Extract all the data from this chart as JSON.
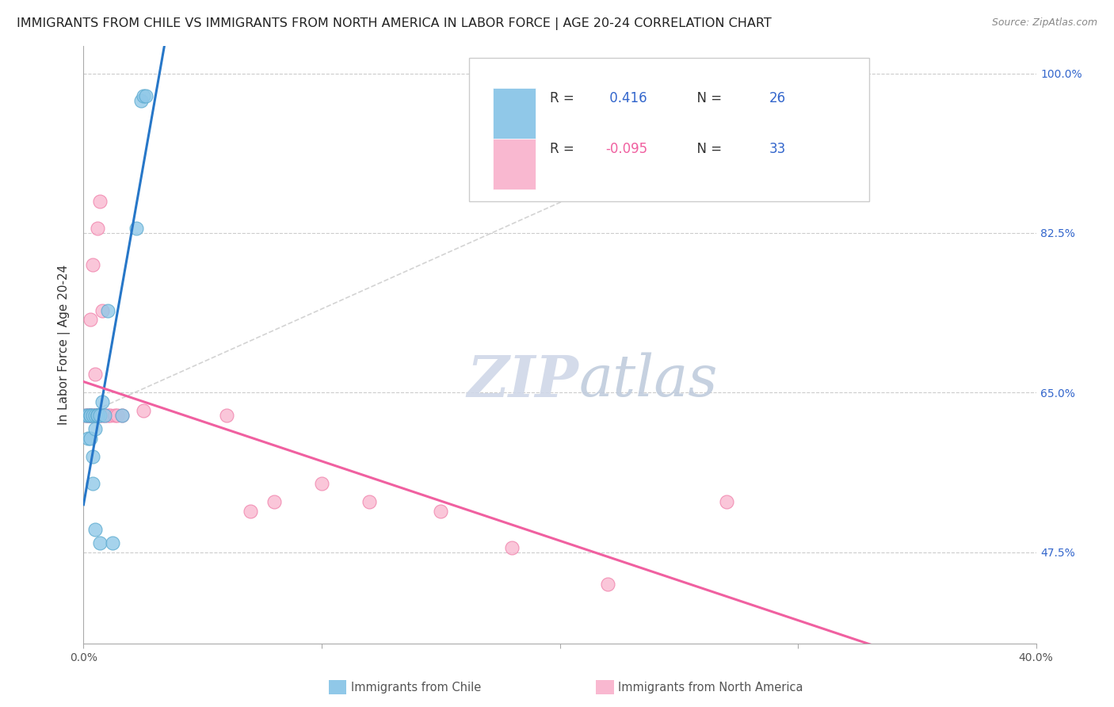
{
  "title": "IMMIGRANTS FROM CHILE VS IMMIGRANTS FROM NORTH AMERICA IN LABOR FORCE | AGE 20-24 CORRELATION CHART",
  "source": "Source: ZipAtlas.com",
  "ylabel": "In Labor Force | Age 20-24",
  "xlim": [
    0.0,
    0.4
  ],
  "ylim": [
    0.375,
    1.03
  ],
  "ytick_vals": [
    1.0,
    0.825,
    0.65,
    0.475
  ],
  "ytick_labels_right": [
    "100.0%",
    "82.5%",
    "65.0%",
    "47.5%"
  ],
  "R_chile": 0.416,
  "N_chile": 26,
  "R_namerica": -0.095,
  "N_namerica": 33,
  "chile_color": "#90c8e8",
  "chile_edge_color": "#5aaacf",
  "namerica_color": "#f9b8d0",
  "namerica_edge_color": "#f080aa",
  "chile_line_color": "#2777c8",
  "namerica_line_color": "#f060a0",
  "diag_color": "#cccccc",
  "grid_color": "#cccccc",
  "bg_color": "#ffffff",
  "watermark_zi": "ZIP",
  "watermark_atlas": "atlas",
  "title_fontsize": 11.5,
  "tick_fontsize": 10,
  "ylabel_fontsize": 11,
  "chile_x": [
    0.001,
    0.002,
    0.002,
    0.003,
    0.003,
    0.003,
    0.004,
    0.004,
    0.004,
    0.005,
    0.005,
    0.005,
    0.006,
    0.006,
    0.006,
    0.007,
    0.007,
    0.008,
    0.009,
    0.01,
    0.012,
    0.016,
    0.022,
    0.024,
    0.025,
    0.026
  ],
  "chile_y": [
    0.625,
    0.6,
    0.625,
    0.625,
    0.6,
    0.625,
    0.58,
    0.625,
    0.55,
    0.61,
    0.625,
    0.5,
    0.625,
    0.625,
    0.625,
    0.625,
    0.485,
    0.64,
    0.625,
    0.74,
    0.485,
    0.625,
    0.83,
    0.97,
    0.975,
    0.975
  ],
  "namerica_x": [
    0.001,
    0.002,
    0.002,
    0.003,
    0.003,
    0.003,
    0.004,
    0.004,
    0.005,
    0.005,
    0.005,
    0.006,
    0.006,
    0.007,
    0.007,
    0.008,
    0.008,
    0.009,
    0.01,
    0.011,
    0.013,
    0.014,
    0.016,
    0.025,
    0.06,
    0.07,
    0.08,
    0.1,
    0.12,
    0.15,
    0.18,
    0.22,
    0.27
  ],
  "namerica_y": [
    0.625,
    0.625,
    0.625,
    0.625,
    0.625,
    0.73,
    0.625,
    0.79,
    0.625,
    0.625,
    0.67,
    0.625,
    0.83,
    0.625,
    0.86,
    0.625,
    0.74,
    0.625,
    0.625,
    0.625,
    0.625,
    0.625,
    0.625,
    0.63,
    0.625,
    0.52,
    0.53,
    0.55,
    0.53,
    0.52,
    0.48,
    0.44,
    0.53
  ]
}
